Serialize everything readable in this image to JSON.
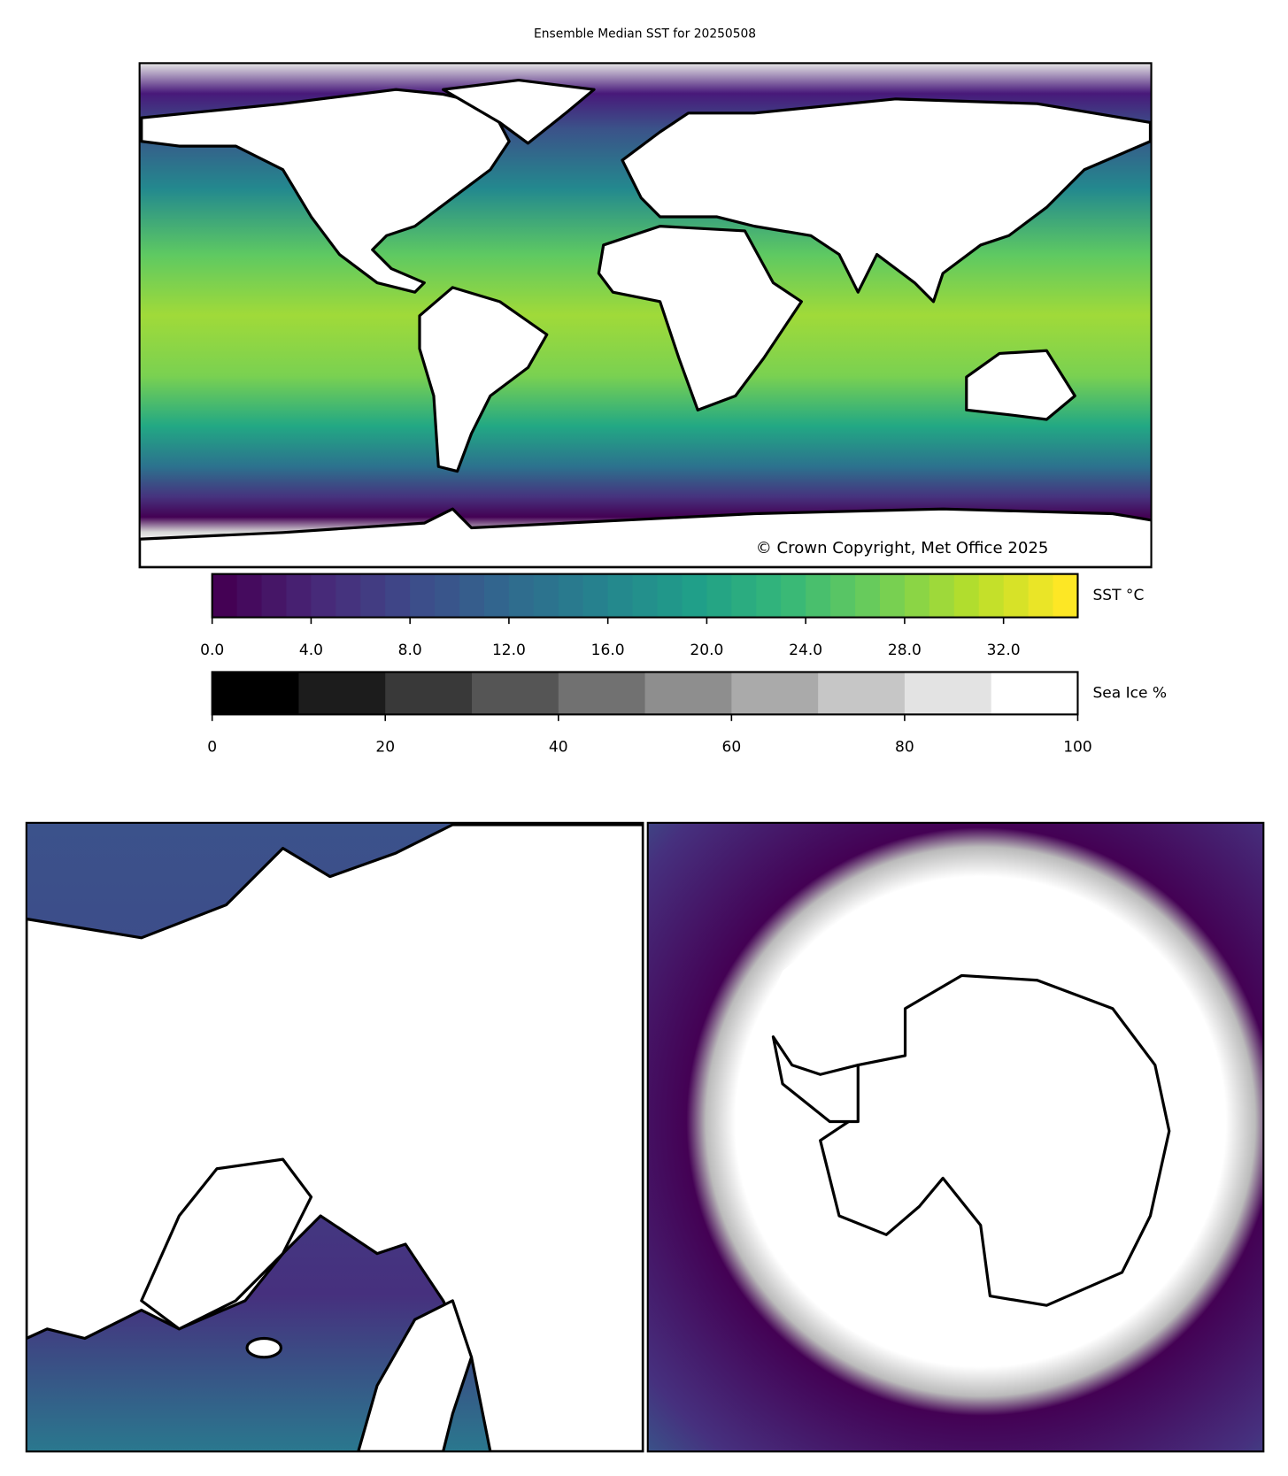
{
  "title": "Ensemble Median SST for 20250508",
  "annotation": "© Crown Copyright, Met Office 2025",
  "colorbars": [
    {
      "label": "SST °C",
      "colormap": "viridis",
      "range": [
        0,
        35
      ],
      "bins": 35,
      "ticks": [
        {
          "value": 0,
          "label": "0.0"
        },
        {
          "value": 4,
          "label": "4.0"
        },
        {
          "value": 8,
          "label": "8.0"
        },
        {
          "value": 12,
          "label": "12.0"
        },
        {
          "value": 16,
          "label": "16.0"
        },
        {
          "value": 20,
          "label": "20.0"
        },
        {
          "value": 24,
          "label": "24.0"
        },
        {
          "value": 28,
          "label": "28.0"
        },
        {
          "value": 32,
          "label": "32.0"
        }
      ]
    },
    {
      "label": "Sea Ice %",
      "colormap": "gray",
      "range": [
        0,
        100
      ],
      "bins": 10,
      "ticks": [
        0,
        20,
        40,
        60,
        80,
        100
      ]
    }
  ]
}
